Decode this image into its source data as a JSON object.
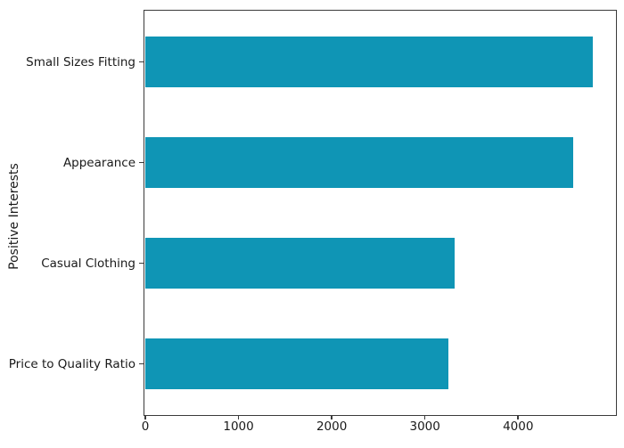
{
  "chart_data": {
    "type": "bar",
    "orientation": "horizontal",
    "title": "",
    "xlabel": "",
    "ylabel": "Positive Interests",
    "categories": [
      "Small Sizes Fitting",
      "Appearance",
      "Casual Clothing",
      "Price to Quality Ratio"
    ],
    "values": [
      4800,
      4590,
      3320,
      3250
    ],
    "x_ticks": [
      0,
      1000,
      2000,
      3000,
      4000
    ],
    "xlim": [
      0,
      5040
    ],
    "bar_color": "#0f95b5",
    "axis_color": "#3b3b3b",
    "text_color": "#1a1a1a",
    "background_color": "#ffffff",
    "grid": false,
    "legend": null,
    "bar_height_fraction": 0.5
  }
}
